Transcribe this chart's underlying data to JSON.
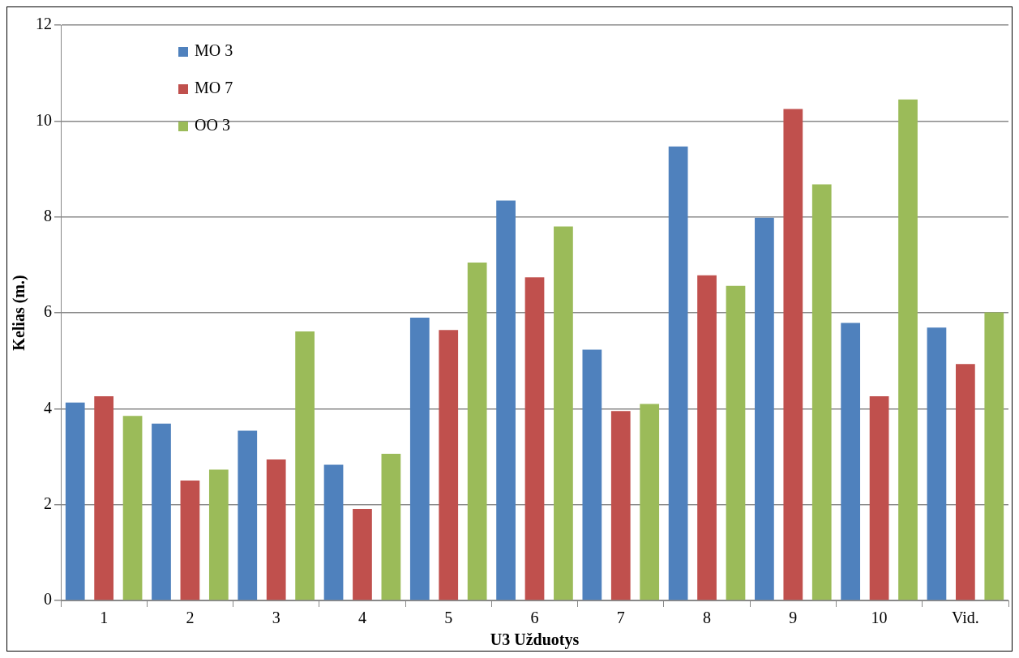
{
  "chart_data": {
    "type": "bar",
    "xlabel": "U3 Užduotys",
    "ylabel": "Kelias (m.)",
    "categories": [
      "1",
      "2",
      "3",
      "4",
      "5",
      "6",
      "7",
      "8",
      "9",
      "10",
      "Vid."
    ],
    "series": [
      {
        "name": "MO 3",
        "color": "#4f81bd",
        "values": [
          4.13,
          3.69,
          3.54,
          2.83,
          5.9,
          8.34,
          5.23,
          9.47,
          7.98,
          5.79,
          5.69
        ]
      },
      {
        "name": "MO 7",
        "color": "#c0504d",
        "values": [
          4.26,
          2.5,
          2.94,
          1.91,
          5.64,
          6.74,
          3.95,
          6.78,
          10.25,
          4.26,
          4.93
        ]
      },
      {
        "name": "OO 3",
        "color": "#9bbb59",
        "values": [
          3.85,
          2.73,
          5.61,
          3.06,
          7.05,
          7.8,
          4.1,
          6.56,
          8.68,
          10.45,
          6.01
        ]
      }
    ],
    "ylim": [
      0,
      12
    ],
    "yticks": [
      0,
      2,
      4,
      6,
      8,
      10,
      12
    ],
    "grid": "y",
    "legend": "top left"
  }
}
